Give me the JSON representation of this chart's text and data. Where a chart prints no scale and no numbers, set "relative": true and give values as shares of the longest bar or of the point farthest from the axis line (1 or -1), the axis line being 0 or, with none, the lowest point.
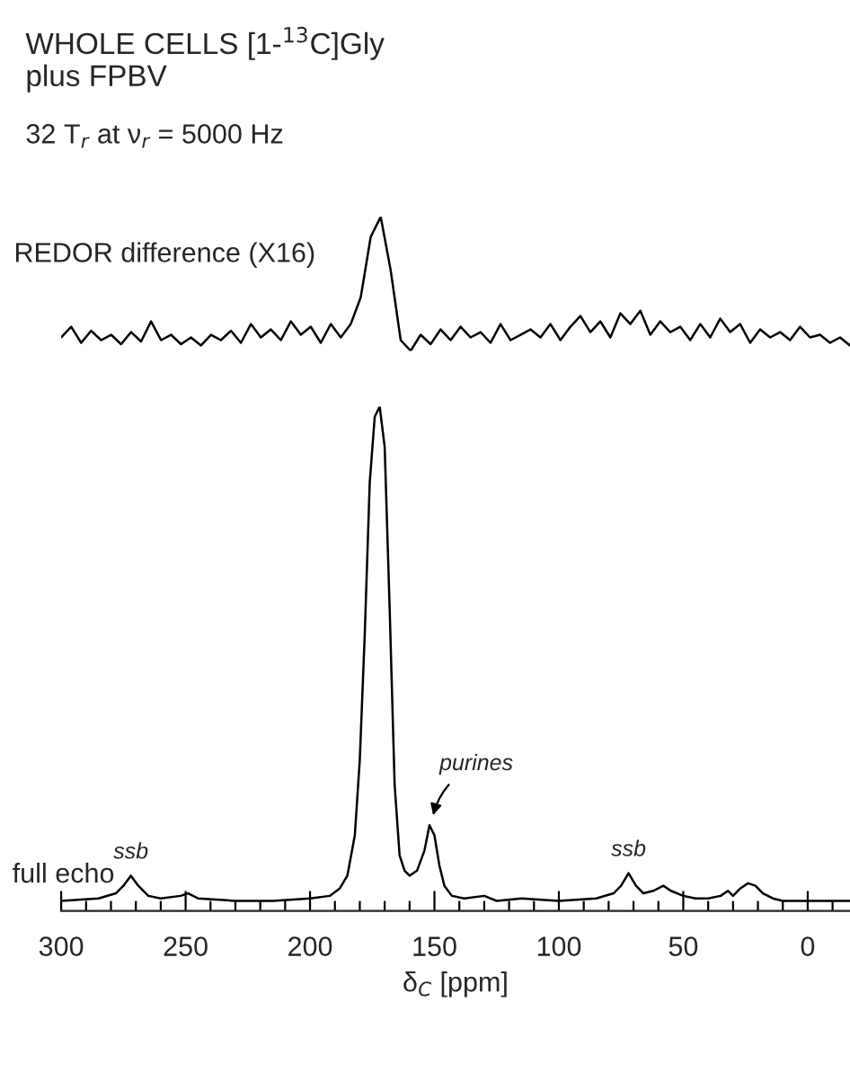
{
  "chart_data": [
    {
      "type": "line",
      "relative": true,
      "tick_labels": false,
      "categories": [
        null,
        null,
        null,
        null,
        null,
        null,
        null,
        null,
        null,
        null,
        null,
        null,
        null,
        null,
        null,
        null,
        null,
        null,
        null,
        null,
        null,
        null,
        null,
        null,
        null,
        null,
        null,
        null,
        null,
        null,
        null,
        null,
        null,
        null,
        null,
        null,
        null,
        null,
        null,
        null,
        null,
        null,
        null,
        null,
        null,
        null,
        null,
        null,
        null,
        null,
        null,
        null,
        null,
        null,
        null,
        null,
        null,
        null,
        null,
        null,
        null,
        null,
        null,
        null,
        null,
        null,
        null,
        null,
        null,
        null,
        null,
        null,
        null,
        null,
        null,
        null,
        null,
        null,
        null,
        null
      ],
      "title": "WHOLE CELLS [1-$^{13}$C]Gly",
      "subtitle": "plus FPBV",
      "annotations": [
        "32 T$_{r}$ at ν$_{r}$ = 5000 Hz"
      ],
      "series": [
        {
          "name": "REDOR difference (X16)",
          "color": "#000000",
          "values": [
            0.1,
            0.18,
            0.06,
            0.15,
            0.08,
            0.12,
            0.05,
            0.14,
            0.07,
            0.22,
            0.08,
            0.12,
            0.05,
            0.1,
            0.04,
            0.12,
            0.08,
            0.15,
            0.06,
            0.2,
            0.1,
            0.16,
            0.08,
            0.22,
            0.12,
            0.18,
            0.06,
            0.2,
            0.1,
            0.2,
            0.4,
            0.85,
            1.0,
            0.6,
            0.08,
            0.0,
            0.12,
            0.05,
            0.16,
            0.08,
            0.18,
            0.1,
            0.14,
            0.06,
            0.2,
            0.08,
            0.12,
            0.16,
            0.1,
            0.2,
            0.08,
            0.18,
            0.26,
            0.14,
            0.22,
            0.1,
            0.28,
            0.2,
            0.3,
            0.12,
            0.22,
            0.14,
            0.18,
            0.08,
            0.2,
            0.1,
            0.24,
            0.14,
            0.2,
            0.06,
            0.16,
            0.1,
            0.14,
            0.08,
            0.18,
            0.1,
            0.12,
            0.06,
            0.1,
            0.04
          ]
        }
      ]
    },
    {
      "type": "line",
      "relative": true,
      "tick_labels": "x",
      "xlim": [
        300,
        -17
      ],
      "xlabel": "δ$_{C}$ [ppm]",
      "xticks": [
        300,
        {
          "value": 290,
          "label": null
        },
        {
          "value": 280,
          "label": null
        },
        {
          "value": 270,
          "label": null
        },
        {
          "value": 260,
          "label": null
        },
        250,
        {
          "value": 240,
          "label": null
        },
        {
          "value": 230,
          "label": null
        },
        {
          "value": 220,
          "label": null
        },
        {
          "value": 210,
          "label": null
        },
        200,
        {
          "value": 190,
          "label": null
        },
        {
          "value": 180,
          "label": null
        },
        {
          "value": 170,
          "label": null
        },
        {
          "value": 160,
          "label": null
        },
        150,
        {
          "value": 140,
          "label": null
        },
        {
          "value": 130,
          "label": null
        },
        {
          "value": 120,
          "label": null
        },
        {
          "value": 110,
          "label": null
        },
        100,
        {
          "value": 90,
          "label": null
        },
        {
          "value": 80,
          "label": null
        },
        {
          "value": 70,
          "label": null
        },
        {
          "value": 60,
          "label": null
        },
        50,
        {
          "value": 40,
          "label": null
        },
        {
          "value": 30,
          "label": null
        },
        {
          "value": 20,
          "label": null
        },
        {
          "value": 10,
          "label": null
        },
        0,
        {
          "value": -10,
          "label": null
        }
      ],
      "annotations": [
        {
          "text": "ssb",
          "x": 272,
          "y": 0.07
        },
        {
          "text": "purines",
          "x": 151,
          "y": 0.18
        },
        {
          "text": "ssb",
          "x": 72,
          "y": 0.075
        }
      ],
      "series": [
        {
          "name": "full echo",
          "color": "#000000",
          "x": [
            300,
            285,
            278,
            275,
            272,
            269,
            265,
            260,
            252,
            249,
            245,
            230,
            215,
            200,
            192,
            188,
            185,
            182,
            180,
            178,
            176,
            174,
            172,
            170,
            168,
            166,
            164,
            162,
            160,
            157,
            154,
            152,
            150,
            148,
            146,
            143,
            138,
            130,
            125,
            115,
            100,
            85,
            78,
            75,
            72,
            69,
            66,
            62,
            58,
            55,
            50,
            45,
            40,
            35,
            32,
            30,
            27,
            24,
            21,
            18,
            14,
            10,
            0,
            -10,
            -17
          ],
          "values": [
            0.02,
            0.025,
            0.035,
            0.05,
            0.07,
            0.05,
            0.03,
            0.025,
            0.03,
            0.035,
            0.025,
            0.02,
            0.02,
            0.025,
            0.03,
            0.045,
            0.07,
            0.15,
            0.3,
            0.55,
            0.85,
            0.98,
            1.0,
            0.92,
            0.6,
            0.25,
            0.11,
            0.08,
            0.07,
            0.08,
            0.12,
            0.17,
            0.15,
            0.09,
            0.05,
            0.03,
            0.025,
            0.03,
            0.02,
            0.025,
            0.02,
            0.025,
            0.035,
            0.05,
            0.075,
            0.05,
            0.035,
            0.04,
            0.05,
            0.04,
            0.03,
            0.025,
            0.025,
            0.03,
            0.04,
            0.03,
            0.045,
            0.055,
            0.05,
            0.035,
            0.025,
            0.02,
            0.02,
            0.02,
            0.02
          ]
        }
      ]
    }
  ]
}
